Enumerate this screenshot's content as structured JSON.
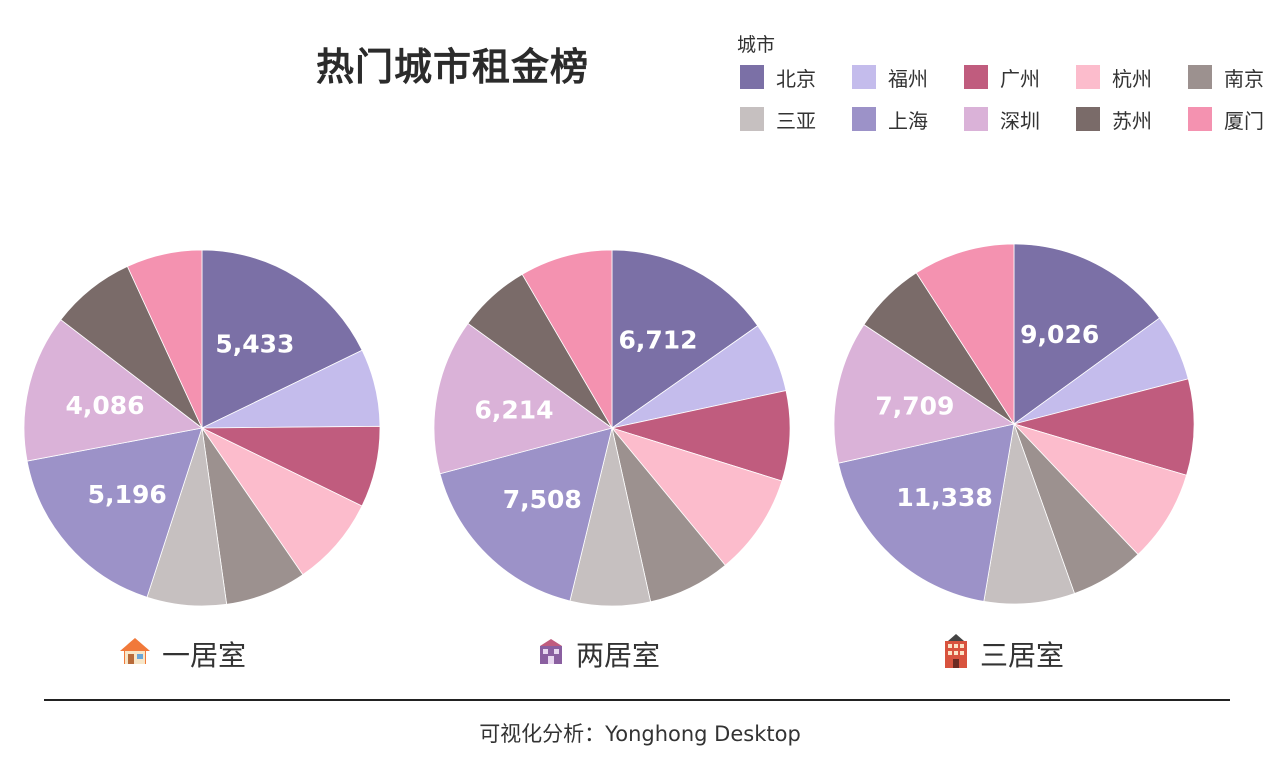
{
  "title": "热门城市租金榜",
  "legend_title": "城市",
  "footer": "可视化分析：Yonghong Desktop",
  "colors": [
    "#7b70a6",
    "#c4bcec",
    "#c05c7e",
    "#fcbccc",
    "#9c918f",
    "#c6c0c0",
    "#9c92c8",
    "#dab2d8",
    "#7a6b69",
    "#f492b0"
  ],
  "chart_data": [
    {
      "type": "pie",
      "title": "一居室",
      "icon": "house-icon",
      "categories": [
        "北京",
        "福州",
        "广州",
        "杭州",
        "南京",
        "三亚",
        "上海",
        "深圳",
        "苏州",
        "厦门"
      ],
      "values": [
        5433,
        2150,
        2250,
        2500,
        2250,
        2200,
        5196,
        4086,
        2350,
        2100
      ],
      "shown_labels": {
        "北京": "5,433",
        "上海": "5,196",
        "深圳": "4,086"
      }
    },
    {
      "type": "pie",
      "title": "两居室",
      "icon": "apartment-icon",
      "categories": [
        "北京",
        "福州",
        "广州",
        "杭州",
        "南京",
        "三亚",
        "上海",
        "深圳",
        "苏州",
        "厦门"
      ],
      "values": [
        6712,
        2800,
        3600,
        4050,
        3300,
        3200,
        7508,
        6214,
        2900,
        3700
      ],
      "shown_labels": {
        "北京": "6,712",
        "上海": "7,508",
        "深圳": "6,214"
      }
    },
    {
      "type": "pie",
      "title": "三居室",
      "icon": "building-icon",
      "categories": [
        "北京",
        "福州",
        "广州",
        "杭州",
        "南京",
        "三亚",
        "上海",
        "深圳",
        "苏州",
        "厦门"
      ],
      "values": [
        9026,
        3600,
        5200,
        5000,
        4000,
        4900,
        11338,
        7709,
        3950,
        5500
      ],
      "shown_labels": {
        "北京": "9,026",
        "上海": "11,338",
        "深圳": "7,709"
      }
    }
  ]
}
